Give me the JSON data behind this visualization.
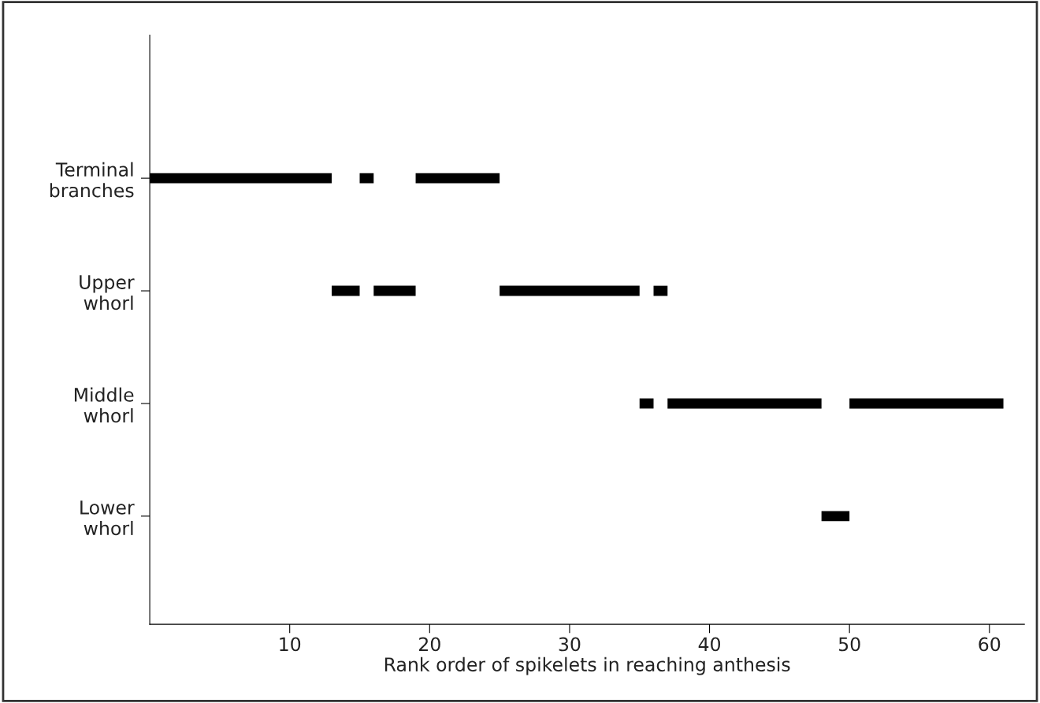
{
  "chart_data": {
    "type": "bar",
    "orientation": "horizontal",
    "xlabel": "Rank order of spikelets in reaching anthesis",
    "categories": [
      "Terminal\nbranches",
      "Upper\nwhorl",
      "Middle\nwhorl",
      "Lower\nwhorl"
    ],
    "series": [
      {
        "color": "#000000",
        "base": [
          0,
          13,
          35,
          48
        ],
        "values": [
          13,
          2,
          1,
          2
        ]
      },
      {
        "color": "#000000",
        "base": [
          15,
          16,
          37,
          null
        ],
        "values": [
          1,
          3,
          11,
          null
        ]
      },
      {
        "color": "#000000",
        "base": [
          19,
          25,
          50,
          null
        ],
        "values": [
          6,
          10,
          11,
          null
        ]
      },
      {
        "color": "#000000",
        "base": [
          null,
          36,
          null,
          null
        ],
        "values": [
          null,
          1,
          null,
          null
        ]
      }
    ],
    "xlim": [
      0,
      62.5
    ],
    "xticks": [
      10,
      20,
      30,
      40,
      50,
      60
    ],
    "grid": false,
    "legend": false
  }
}
